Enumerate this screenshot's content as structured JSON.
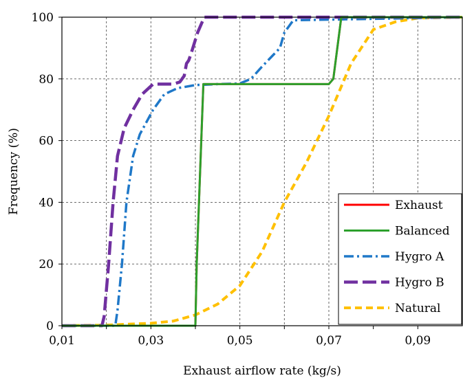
{
  "chart_data": {
    "type": "line",
    "title": "",
    "xlabel": "Exhaust airflow rate  (kg/s)",
    "ylabel": "Frequency (%)",
    "xlim": [
      0.01,
      0.1
    ],
    "ylim": [
      0,
      100
    ],
    "x_ticks": [
      0.01,
      0.02,
      0.03,
      0.04,
      0.05,
      0.06,
      0.07,
      0.08,
      0.09
    ],
    "x_tick_labels": [
      "0,01",
      "0,03",
      "0,05",
      "0,07",
      "0,09"
    ],
    "x_tick_label_values": [
      0.01,
      0.03,
      0.05,
      0.07,
      0.09
    ],
    "y_ticks": [
      0,
      20,
      40,
      60,
      80,
      100
    ],
    "y_tick_labels": [
      "0",
      "20",
      "40",
      "60",
      "80",
      "100"
    ],
    "grid": "dashed",
    "legend_position": "bottom-right",
    "series": [
      {
        "name": "Exhaust",
        "color": "#ff0000",
        "dash": "solid",
        "x": [
          0.01,
          0.04,
          0.0403,
          0.0418,
          0.07,
          0.071,
          0.0728,
          0.1
        ],
        "y": [
          0,
          0,
          20,
          78.3,
          78.3,
          80,
          100,
          100
        ]
      },
      {
        "name": "Balanced",
        "color": "#2ca02c",
        "dash": "solid",
        "x": [
          0.01,
          0.04,
          0.0403,
          0.0418,
          0.07,
          0.071,
          0.0728,
          0.1
        ],
        "y": [
          0,
          0,
          20,
          78.3,
          78.3,
          80,
          100,
          100
        ]
      },
      {
        "name": "Hygro A",
        "color": "#1f78c8",
        "dash": "dashdot",
        "x": [
          0.01,
          0.022,
          0.0225,
          0.0235,
          0.0245,
          0.026,
          0.0275,
          0.029,
          0.0305,
          0.033,
          0.036,
          0.04,
          0.045,
          0.05,
          0.0525,
          0.055,
          0.057,
          0.059,
          0.06,
          0.062,
          0.1
        ],
        "y": [
          0,
          0,
          5,
          20,
          40,
          55,
          62,
          66,
          70,
          75,
          77,
          78,
          78.3,
          78.5,
          80,
          84,
          87,
          90,
          95,
          99,
          100
        ]
      },
      {
        "name": "Hygro B",
        "color": "#7030a0",
        "dash": "longdash",
        "x": [
          0.01,
          0.019,
          0.0195,
          0.0205,
          0.0215,
          0.0225,
          0.024,
          0.026,
          0.028,
          0.0295,
          0.0305,
          0.035,
          0.0365,
          0.0375,
          0.038,
          0.0385,
          0.039,
          0.0405,
          0.042,
          0.1
        ],
        "y": [
          0,
          0,
          3,
          20,
          40,
          55,
          64,
          70,
          75,
          77,
          78.3,
          78.3,
          79,
          81,
          85,
          86,
          88,
          95,
          100,
          100
        ]
      },
      {
        "name": "Natural",
        "color": "#ffc000",
        "dash": "dash",
        "x": [
          0.01,
          0.02,
          0.03,
          0.035,
          0.04,
          0.045,
          0.05,
          0.055,
          0.06,
          0.065,
          0.07,
          0.075,
          0.08,
          0.085,
          0.09,
          0.1
        ],
        "y": [
          0,
          0.2,
          0.8,
          1.5,
          3.5,
          7,
          13,
          24,
          40,
          53,
          68,
          85,
          96,
          98.5,
          99.7,
          100
        ]
      }
    ]
  }
}
